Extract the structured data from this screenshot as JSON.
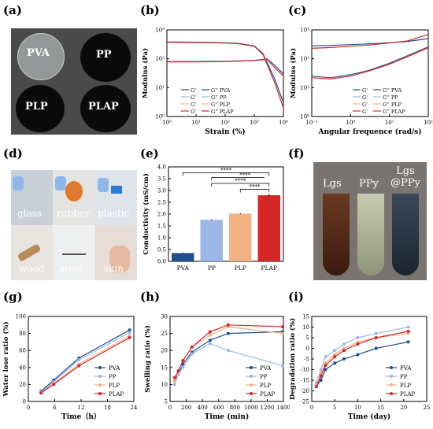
{
  "panels": {
    "a": "(a)",
    "b": "(b)",
    "c": "(c)",
    "d": "(d)",
    "e": "(e)",
    "f": "(f)",
    "g": "(g)",
    "h": "(h)",
    "i": "(i)"
  },
  "photo_a": {
    "labels": [
      "PVA",
      "PP",
      "PLP",
      "PLAP"
    ]
  },
  "photo_d": {
    "labels": [
      "glass",
      "rubber",
      "plastic",
      "wood",
      "steel",
      "skin"
    ]
  },
  "photo_f": {
    "labels": [
      "Lgs",
      "PPy",
      "Lgs\n@PPy"
    ]
  },
  "colors": {
    "PVA": "#1f4e8c",
    "PP": "#9ab7e6",
    "PLP": "#f4b183",
    "PLAP": "#d62728"
  },
  "chart_data": [
    {
      "id": "b",
      "type": "line",
      "xlabel": "Strain (%)",
      "ylabel": "Modulus (Pa)",
      "xscale": "log",
      "yscale": "log",
      "xlim": [
        1,
        10000
      ],
      "ylim": [
        1,
        1000
      ],
      "xticks": [
        "10⁰",
        "10¹",
        "10²",
        "10³",
        "10⁴"
      ],
      "yticks": [
        "10⁰",
        "10¹",
        "10²",
        "10³"
      ],
      "legend": [
        "G'",
        "G'' PVA",
        "G'",
        "G'' PP",
        "G'",
        "G'' PLP",
        "G'",
        "G'' PLAP"
      ],
      "series": [
        {
          "name": "G' PVA",
          "x": [
            1,
            10,
            100,
            300,
            1000,
            2000,
            5000,
            10000
          ],
          "y": [
            380,
            375,
            360,
            340,
            280,
            150,
            20,
            3
          ]
        },
        {
          "name": "G'' PVA",
          "x": [
            1,
            10,
            100,
            300,
            1000,
            2000,
            2700,
            5000,
            10000
          ],
          "y": [
            80,
            80,
            82,
            84,
            88,
            95,
            100,
            60,
            30
          ]
        },
        {
          "name": "G' PLAP",
          "x": [
            1,
            10,
            100,
            300,
            1000,
            2000,
            5000,
            10000
          ],
          "y": [
            370,
            365,
            350,
            330,
            270,
            140,
            15,
            2
          ]
        },
        {
          "name": "G'' PLAP",
          "x": [
            1,
            10,
            100,
            300,
            1000,
            2000,
            2700,
            5000,
            10000
          ],
          "y": [
            78,
            78,
            80,
            83,
            87,
            92,
            96,
            50,
            25
          ]
        }
      ]
    },
    {
      "id": "c",
      "type": "line",
      "xlabel": "Angular frequence (rad/s)",
      "ylabel": "Modulus (Pa)",
      "xscale": "log",
      "yscale": "log",
      "xlim": [
        0.1,
        100
      ],
      "ylim": [
        1,
        1000
      ],
      "xticks": [
        "10⁻¹",
        "10⁰",
        "10¹",
        "10²"
      ],
      "yticks": [
        "10⁰",
        "10¹",
        "10²",
        "10³"
      ],
      "legend": [
        "G'",
        "G'' PVA",
        "G'",
        "G'' PP",
        "G'",
        "G'' PLP",
        "G'",
        "G'' PLAP"
      ],
      "series": [
        {
          "name": "G' PVA",
          "x": [
            0.1,
            0.3,
            1,
            3,
            10,
            30,
            100
          ],
          "y": [
            280,
            290,
            310,
            330,
            360,
            400,
            500
          ]
        },
        {
          "name": "G'' PVA",
          "x": [
            0.1,
            0.3,
            1,
            3,
            10,
            30,
            100
          ],
          "y": [
            25,
            22,
            28,
            40,
            70,
            130,
            260
          ]
        },
        {
          "name": "G' PLAP",
          "x": [
            0.1,
            0.3,
            1,
            3,
            10,
            30,
            100
          ],
          "y": [
            230,
            245,
            270,
            300,
            350,
            420,
            700
          ]
        },
        {
          "name": "G'' PLAP",
          "x": [
            0.1,
            0.3,
            1,
            3,
            10,
            30,
            100
          ],
          "y": [
            22,
            20,
            25,
            38,
            65,
            120,
            240
          ]
        }
      ]
    },
    {
      "id": "e",
      "type": "bar",
      "ylabel": "Conductivity (mS/cm)",
      "ylim": [
        0,
        4.0
      ],
      "yticks": [
        "0.0",
        "0.5",
        "1.0",
        "1.5",
        "2.0",
        "2.5",
        "3.0",
        "3.5",
        "4.0"
      ],
      "categories": [
        "PVA",
        "PP",
        "PLP",
        "PLAP"
      ],
      "values": [
        0.35,
        1.76,
        2.02,
        2.8
      ],
      "errors": [
        0.02,
        0.02,
        0.03,
        0.06
      ],
      "annotations": [
        "****",
        "****",
        "****",
        "****"
      ]
    },
    {
      "id": "g",
      "type": "line",
      "xlabel": "Time（h）",
      "ylabel": "Water lose ratio (%)",
      "xlim": [
        0,
        25
      ],
      "ylim": [
        0,
        100
      ],
      "xticks": [
        "0",
        "6",
        "12",
        "18",
        "24"
      ],
      "yticks": [
        "0",
        "20",
        "40",
        "60",
        "80",
        "100"
      ],
      "series": [
        {
          "name": "PVA",
          "x": [
            3,
            6,
            12,
            24
          ],
          "y": [
            12,
            25,
            51,
            84
          ]
        },
        {
          "name": "PP",
          "x": [
            3,
            6,
            12,
            24
          ],
          "y": [
            11,
            23,
            49,
            81
          ]
        },
        {
          "name": "PLP",
          "x": [
            3,
            6,
            12,
            24
          ],
          "y": [
            10,
            21,
            44,
            77
          ]
        },
        {
          "name": "PLAP",
          "x": [
            3,
            6,
            12,
            24
          ],
          "y": [
            10,
            20,
            42,
            75
          ]
        }
      ]
    },
    {
      "id": "h",
      "type": "line",
      "xlabel": "Time (min)",
      "ylabel": "Swelling ratio (%)",
      "xlim": [
        -50,
        1450
      ],
      "ylim": [
        5,
        30
      ],
      "xticks": [
        "0",
        "200",
        "400",
        "600",
        "800",
        "1000",
        "1200",
        "1400"
      ],
      "yticks": [
        "5",
        "10",
        "15",
        "20",
        "25",
        "30"
      ],
      "series": [
        {
          "name": "PVA",
          "x": [
            10,
            60,
            120,
            240,
            480,
            720,
            1440
          ],
          "y": [
            11,
            13,
            16,
            19.5,
            23,
            25,
            25.5
          ]
        },
        {
          "name": "PP",
          "x": [
            10,
            60,
            120,
            240,
            480,
            720,
            1440
          ],
          "y": [
            10,
            13,
            15,
            19,
            22,
            20,
            15.5
          ]
        },
        {
          "name": "PLP",
          "x": [
            10,
            60,
            120,
            240,
            480,
            720,
            1440
          ],
          "y": [
            11,
            14,
            17,
            21,
            24.5,
            27,
            25
          ]
        },
        {
          "name": "PLAP",
          "x": [
            10,
            60,
            120,
            240,
            480,
            720,
            1440
          ],
          "y": [
            12,
            14,
            17,
            21,
            25.5,
            27.5,
            27
          ]
        }
      ]
    },
    {
      "id": "i",
      "type": "line",
      "xlabel": "Time (day)",
      "ylabel": "Degradation ratio (%)",
      "xlim": [
        0,
        25
      ],
      "ylim": [
        -25,
        15
      ],
      "xticks": [
        "0",
        "5",
        "10",
        "15",
        "20",
        "25"
      ],
      "yticks": [
        "-25",
        "-20",
        "-15",
        "-10",
        "-5",
        "0",
        "5",
        "10",
        "15"
      ],
      "series": [
        {
          "name": "PVA",
          "x": [
            1,
            2,
            3,
            5,
            7,
            10,
            14,
            21
          ],
          "y": [
            -18,
            -15,
            -10,
            -7,
            -5,
            -3,
            0,
            3
          ]
        },
        {
          "name": "PP",
          "x": [
            1,
            2,
            3,
            5,
            7,
            10,
            14,
            21
          ],
          "y": [
            -16,
            -10,
            -4,
            -1,
            2,
            5,
            7,
            10
          ]
        },
        {
          "name": "PLP",
          "x": [
            1,
            2,
            3,
            5,
            7,
            10,
            14,
            21
          ],
          "y": [
            -17,
            -12,
            -7,
            -3,
            0,
            3,
            5,
            7
          ]
        },
        {
          "name": "PLAP",
          "x": [
            1,
            2,
            3,
            5,
            7,
            10,
            14,
            21
          ],
          "y": [
            -18,
            -13,
            -8,
            -4,
            -1,
            2,
            5,
            8
          ]
        }
      ]
    }
  ]
}
